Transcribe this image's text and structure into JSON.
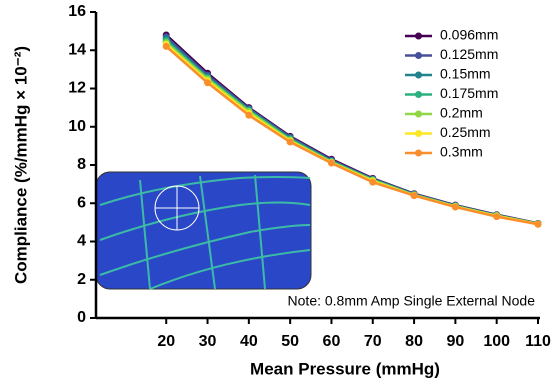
{
  "chart_data": {
    "type": "line",
    "xlabel": "Mean Pressure (mmHg)",
    "ylabel": "Compliance (%/mmHg × 10⁻²)",
    "annotation": "Note: 0.8mm Amp Single External Node",
    "x": [
      20,
      30,
      40,
      50,
      60,
      70,
      80,
      90,
      100,
      110
    ],
    "xlim": [
      3,
      110
    ],
    "xticks": [
      20,
      30,
      40,
      50,
      60,
      70,
      80,
      90,
      100,
      110
    ],
    "ylim": [
      0,
      16
    ],
    "yticks": [
      0,
      2,
      4,
      6,
      8,
      10,
      12,
      14,
      16
    ],
    "legend": "upper right",
    "series": [
      {
        "name": "0.096mm",
        "color": "#440154",
        "values": [
          14.8,
          12.8,
          11.0,
          9.5,
          8.3,
          7.3,
          6.5,
          5.9,
          5.4,
          4.95
        ]
      },
      {
        "name": "0.125mm",
        "color": "#46509a",
        "values": [
          14.7,
          12.7,
          10.95,
          9.45,
          8.25,
          7.27,
          6.48,
          5.88,
          5.38,
          4.94
        ]
      },
      {
        "name": "0.15mm",
        "color": "#21818c",
        "values": [
          14.6,
          12.6,
          10.9,
          9.4,
          8.2,
          7.25,
          6.46,
          5.86,
          5.37,
          4.93
        ]
      },
      {
        "name": "0.175mm",
        "color": "#2bb07f",
        "values": [
          14.5,
          12.55,
          10.85,
          9.35,
          8.18,
          7.22,
          6.44,
          5.85,
          5.36,
          4.93
        ]
      },
      {
        "name": "0.2mm",
        "color": "#8fd744",
        "values": [
          14.4,
          12.5,
          10.8,
          9.3,
          8.15,
          7.2,
          6.43,
          5.84,
          5.35,
          4.92
        ]
      },
      {
        "name": "0.25mm",
        "color": "#fde725",
        "values": [
          14.3,
          12.4,
          10.7,
          9.25,
          8.12,
          7.15,
          6.41,
          5.82,
          5.33,
          4.91
        ]
      },
      {
        "name": "0.3mm",
        "color": "#f98e2b",
        "values": [
          14.2,
          12.3,
          10.6,
          9.2,
          8.1,
          7.1,
          6.4,
          5.8,
          5.3,
          4.9
        ]
      }
    ]
  }
}
